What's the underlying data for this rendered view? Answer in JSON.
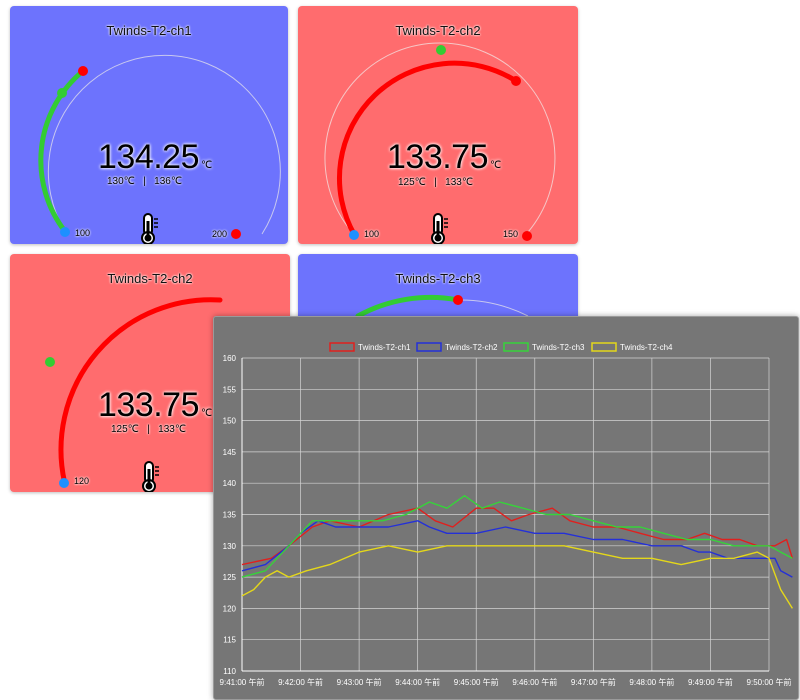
{
  "gauges": [
    {
      "title": "Twinds-T2-ch1",
      "value": "134.25",
      "unit": "℃",
      "range": "130℃   |   136℃",
      "min": "100",
      "max": "200",
      "color": "#6d73fd"
    },
    {
      "title": "Twinds-T2-ch2",
      "value": "133.75",
      "unit": "℃",
      "range": "125℃   |   133℃",
      "min": "100",
      "max": "150",
      "color": "#ff6c6e"
    },
    {
      "title": "Twinds-T2-ch2",
      "value": "133.75",
      "unit": "℃",
      "range": "125℃   |   133℃",
      "min": "120",
      "max": "",
      "color": "#ff6c6e"
    },
    {
      "title": "Twinds-T2-ch3",
      "value": "",
      "unit": "",
      "range": "",
      "min": "",
      "max": "",
      "color": "#6d73fd"
    }
  ],
  "icons": {
    "thermometer": "thermometer-icon"
  },
  "chart_data": {
    "type": "line",
    "title": "",
    "xlabel": "",
    "ylabel": "",
    "ylim": [
      110,
      160
    ],
    "yticks": [
      110,
      115,
      120,
      125,
      130,
      135,
      140,
      145,
      150,
      155,
      160
    ],
    "x_tick_labels": [
      "9:41:00 午前",
      "9:42:00 午前",
      "9:43:00 午前",
      "9:44:00 午前",
      "9:45:00 午前",
      "9:46:00 午前",
      "9:47:00 午前",
      "9:48:00 午前",
      "9:49:00 午前",
      "9:50:00 午前"
    ],
    "x_unit": "minutes after 9:41:00",
    "legend_position": "top-center",
    "grid": true,
    "series": [
      {
        "name": "Twinds-T2-ch1",
        "color": "#e0201e",
        "x": [
          0.0,
          0.5,
          0.8,
          1.2,
          1.5,
          2.0,
          2.5,
          3.0,
          3.3,
          3.6,
          4.0,
          4.3,
          4.6,
          4.9,
          5.3,
          5.6,
          6.0,
          6.4,
          6.8,
          7.2,
          7.6,
          7.9,
          8.2,
          8.5,
          8.8,
          9.1,
          9.3,
          9.4
        ],
        "y": [
          127,
          128,
          130,
          133,
          134,
          133,
          135,
          136,
          134,
          133,
          136,
          136,
          134,
          135,
          136,
          134,
          133,
          133,
          132,
          131,
          131,
          132,
          131,
          131,
          130,
          130,
          131,
          128
        ]
      },
      {
        "name": "Twinds-T2-ch2",
        "color": "#2430d8",
        "x": [
          0.0,
          0.4,
          0.8,
          1.0,
          1.3,
          1.6,
          2.0,
          2.5,
          3.0,
          3.2,
          3.5,
          4.0,
          4.5,
          5.0,
          5.5,
          6.0,
          6.5,
          7.0,
          7.5,
          7.8,
          8.0,
          8.3,
          8.6,
          8.9,
          9.1,
          9.2,
          9.4
        ],
        "y": [
          126,
          127,
          130,
          132,
          134,
          133,
          133,
          133,
          134,
          133,
          132,
          132,
          133,
          132,
          132,
          131,
          131,
          130,
          130,
          129,
          129,
          128,
          128,
          128,
          128,
          126,
          125
        ]
      },
      {
        "name": "Twinds-T2-ch3",
        "color": "#36d33a",
        "x": [
          0.0,
          0.4,
          0.8,
          1.2,
          1.6,
          2.0,
          2.4,
          2.8,
          3.2,
          3.5,
          3.8,
          4.1,
          4.4,
          4.8,
          5.2,
          5.6,
          6.0,
          6.4,
          6.8,
          7.2,
          7.6,
          8.0,
          8.4,
          8.8,
          9.0,
          9.2,
          9.4
        ],
        "y": [
          125,
          126,
          130,
          134,
          134,
          134,
          134,
          135,
          137,
          136,
          138,
          136,
          137,
          136,
          135,
          135,
          134,
          133,
          133,
          132,
          131,
          131,
          130,
          130,
          130,
          129,
          128
        ]
      },
      {
        "name": "Twinds-T2-ch4",
        "color": "#e4d71a",
        "x": [
          0.0,
          0.2,
          0.4,
          0.6,
          0.8,
          1.1,
          1.5,
          2.0,
          2.5,
          3.0,
          3.5,
          4.0,
          4.5,
          5.0,
          5.5,
          6.0,
          6.5,
          7.0,
          7.5,
          8.0,
          8.4,
          8.8,
          9.0,
          9.2,
          9.4
        ],
        "y": [
          122,
          123,
          125,
          126,
          125,
          126,
          127,
          129,
          130,
          129,
          130,
          130,
          130,
          130,
          130,
          129,
          128,
          128,
          127,
          128,
          128,
          129,
          128,
          123,
          120
        ]
      }
    ]
  }
}
